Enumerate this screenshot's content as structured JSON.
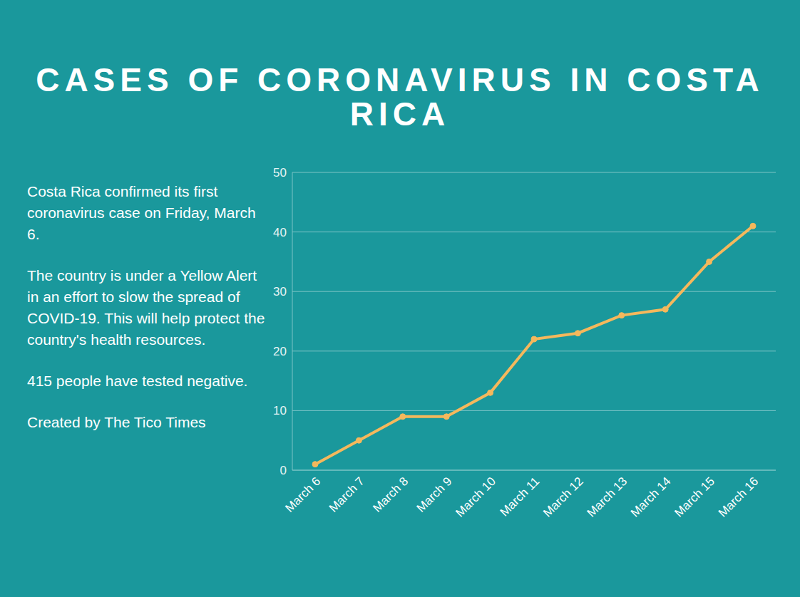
{
  "chart_data": {
    "type": "line",
    "title": "CASES OF CORONAVIRUS IN COSTA RICA",
    "annotations": [
      "Costa Rica confirmed its first coronavirus case on Friday, March 6.",
      "The country is under a Yellow Alert in an effort to slow the spread of COVID-19. This will help protect the country's health resources.",
      "415 people have tested negative.",
      "Created by The Tico Times"
    ],
    "categories": [
      "March 6",
      "March 7",
      "March 8",
      "March 9",
      "March 10",
      "March 11",
      "March 12",
      "March 13",
      "March 14",
      "March 15",
      "March 16"
    ],
    "values": [
      1,
      5,
      9,
      9,
      13,
      22,
      23,
      26,
      27,
      35,
      41
    ],
    "color": "#f5b85c",
    "marker": "circle",
    "ylim": [
      0,
      50
    ],
    "yticks": [
      0,
      10,
      20,
      30,
      40,
      50
    ],
    "grid": true
  }
}
